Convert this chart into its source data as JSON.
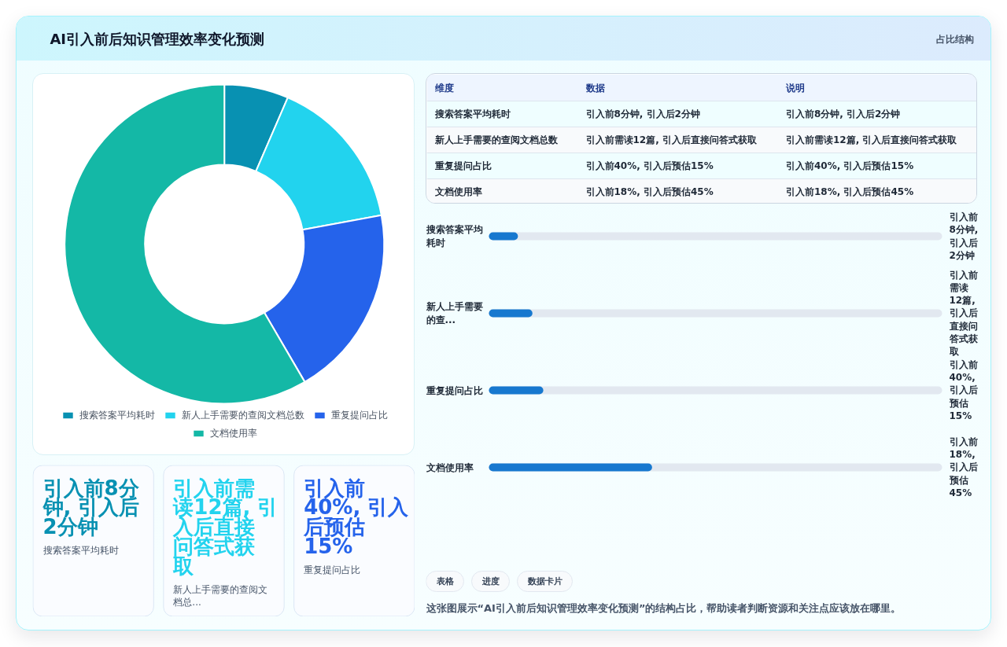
{
  "chart_data": [
    {
      "type": "other",
      "title": "AI引入前后知识管理效率变化预测",
      "subtitle": "占比结构"
    },
    {
      "type": "donut",
      "categories": [
        "搜索答案平均耗时",
        "新人上手需要的查阅文档总数",
        "重复提问占比",
        "文档使用率"
      ],
      "values": [
        6.5,
        15.6,
        19.5,
        58.4
      ],
      "colors": [
        "#0891b2",
        "#22d3ee",
        "#2563eb",
        "#14b8a6"
      ],
      "legend": "bottom"
    },
    {
      "type": "other",
      "categories": [
        "维度",
        "数据",
        "说明"
      ],
      "annotations": [
        "搜索答案平均耗时",
        "引入前8分钟, 引入后2分钟",
        "引入前8分钟, 引入后2分钟",
        "新人上手需要的查阅文档总数",
        "引入前需读12篇, 引入后直接问答式获取",
        "引入前需读12篇, 引入后直接问答式获取",
        "重复提问占比",
        "引入前40%, 引入后预估15%",
        "引入前40%, 引入后预估15%",
        "文档使用率",
        "引入前18%, 引入后预估45%",
        "引入前18%, 引入后预估45%"
      ]
    },
    {
      "type": "bar",
      "orientation": "horizontal",
      "categories": [
        "搜索答案平均耗时",
        "新人上手需要的查...",
        "重复提问占比",
        "文档使用率"
      ],
      "values": [
        8,
        12,
        15,
        45
      ],
      "xlim": [
        0,
        125
      ],
      "color": "#1778cf",
      "value_labels": [
        "引入前8分钟, 引入后2分钟",
        "引入前需读12篇, 引入后直接问答式获取",
        "引入前40%, 引入后预估15%",
        "引入前18%, 引入后预估45%"
      ]
    },
    {
      "type": "other",
      "categories": [
        "搜索答案平均耗时",
        "新人上手需要的查阅文档总...",
        "重复提问占比"
      ],
      "annotations": [
        "引入前8分钟, 引入后2分钟",
        "引入前需读12篇, 引入后直接问答式获取",
        "引入前40%, 引入后预估15%"
      ]
    },
    {
      "type": "other",
      "categories": [
        "表格",
        "进度",
        "数据卡片"
      ],
      "annotations": [
        "这张图展示“AI引入前后知识管理效率变化预测”的结构占比，帮助读者判断资源和关注点应该放在哪里。"
      ]
    }
  ]
}
